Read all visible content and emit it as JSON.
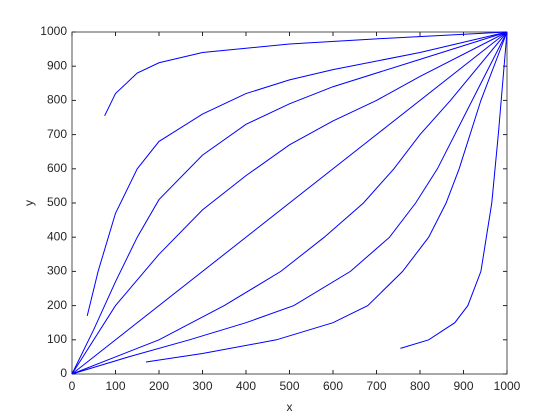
{
  "chart_data": {
    "type": "line",
    "xlabel": "x",
    "ylabel": "y",
    "color": "#0000ff",
    "xlim": [
      0,
      1000
    ],
    "ylim": [
      0,
      1000
    ],
    "xticks": [
      0,
      100,
      200,
      300,
      400,
      500,
      600,
      700,
      800,
      900,
      1000
    ],
    "yticks": [
      0,
      100,
      200,
      300,
      400,
      500,
      600,
      700,
      800,
      900,
      1000
    ],
    "series": [
      {
        "x": [
          75,
          100,
          150,
          200,
          300,
          500,
          700,
          1000
        ],
        "y": [
          755,
          820,
          880,
          910,
          940,
          965,
          980,
          1000
        ]
      },
      {
        "x": [
          35,
          60,
          100,
          150,
          200,
          300,
          400,
          500,
          600,
          800,
          1000
        ],
        "y": [
          170,
          300,
          470,
          600,
          680,
          760,
          820,
          860,
          890,
          940,
          1000
        ]
      },
      {
        "x": [
          0,
          50,
          100,
          150,
          200,
          300,
          400,
          500,
          600,
          800,
          1000
        ],
        "y": [
          0,
          130,
          270,
          400,
          510,
          640,
          730,
          790,
          840,
          920,
          1000
        ]
      },
      {
        "x": [
          0,
          100,
          200,
          300,
          400,
          500,
          600,
          700,
          800,
          1000
        ],
        "y": [
          0,
          200,
          350,
          480,
          580,
          670,
          740,
          800,
          870,
          1000
        ]
      },
      {
        "x": [
          0,
          1000
        ],
        "y": [
          0,
          1000
        ]
      },
      {
        "x": [
          0,
          200,
          350,
          480,
          580,
          670,
          740,
          800,
          870,
          1000
        ],
        "y": [
          0,
          100,
          200,
          300,
          400,
          500,
          600,
          700,
          800,
          1000
        ]
      },
      {
        "x": [
          0,
          130,
          270,
          400,
          510,
          640,
          730,
          790,
          840,
          920,
          1000
        ],
        "y": [
          0,
          50,
          100,
          150,
          200,
          300,
          400,
          500,
          600,
          800,
          1000
        ]
      },
      {
        "x": [
          170,
          300,
          470,
          600,
          680,
          760,
          820,
          860,
          890,
          940,
          1000
        ],
        "y": [
          35,
          60,
          100,
          150,
          200,
          300,
          400,
          500,
          600,
          800,
          1000
        ]
      },
      {
        "x": [
          755,
          820,
          880,
          910,
          940,
          965,
          980,
          1000
        ],
        "y": [
          75,
          100,
          150,
          200,
          300,
          500,
          700,
          1000
        ]
      }
    ]
  }
}
